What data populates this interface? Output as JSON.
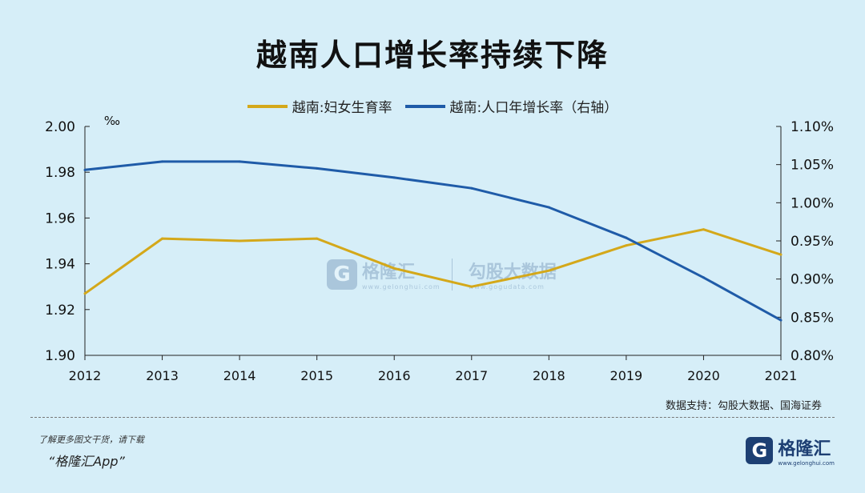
{
  "title": "越南人口增长率持续下降",
  "unit_left": "‰",
  "source": "数据支持：勾股大数据、国海证券",
  "footer": {
    "line1": "了解更多图文干货，请下载",
    "line2": "“格隆汇App”"
  },
  "logo": {
    "icon": "G",
    "name": "格隆汇",
    "url": "www.gelonghui.com"
  },
  "watermark": {
    "left_name": "格隆汇",
    "left_url": "www.gelonghui.com",
    "right_name": "勾股大数据",
    "right_url": "www.gogudata.com"
  },
  "colors": {
    "fertility": "#d4a81a",
    "growth": "#1f5ba8",
    "background": "#d6eef8"
  },
  "chart_data": {
    "type": "line",
    "categories": [
      "2012",
      "2013",
      "2014",
      "2015",
      "2016",
      "2017",
      "2018",
      "2019",
      "2020",
      "2021"
    ],
    "series": [
      {
        "name": "越南:妇女生育率",
        "axis": "left",
        "values": [
          1.927,
          1.951,
          1.95,
          1.951,
          1.938,
          1.93,
          1.937,
          1.948,
          1.955,
          1.944
        ]
      },
      {
        "name": "越南:人口年增长率（右轴）",
        "axis": "right",
        "values": [
          1.043,
          1.054,
          1.054,
          1.045,
          1.033,
          1.019,
          0.994,
          0.954,
          0.902,
          0.846
        ]
      }
    ],
    "y_left": {
      "min": 1.9,
      "max": 2.0,
      "ticks": [
        "1.90",
        "1.92",
        "1.94",
        "1.96",
        "1.98",
        "2.00"
      ]
    },
    "y_right": {
      "min": 0.8,
      "max": 1.1,
      "ticks": [
        "0.80%",
        "0.85%",
        "0.90%",
        "0.95%",
        "1.00%",
        "1.05%",
        "1.10%"
      ]
    },
    "legend_position": "top-center",
    "grid": false
  }
}
